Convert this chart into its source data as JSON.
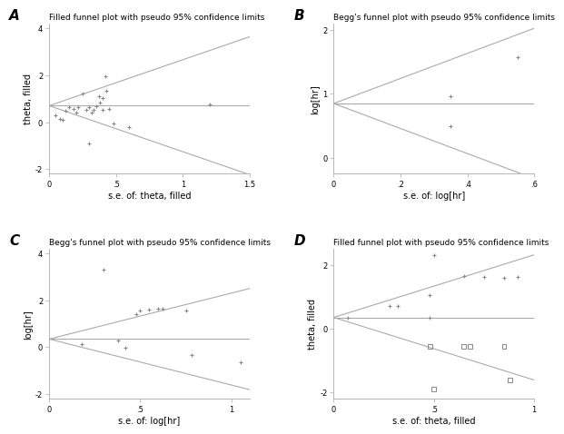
{
  "panel_A": {
    "title": "Filled funnel plot with pseudo 95% confidence limits",
    "xlabel": "s.e. of: theta, filled",
    "ylabel": "theta, filled",
    "xlim": [
      0,
      1.5
    ],
    "ylim": [
      -2.2,
      4.2
    ],
    "xticks": [
      0,
      0.5,
      1.0,
      1.5
    ],
    "yticks": [
      -2,
      0,
      2,
      4
    ],
    "xticklabels": [
      "0",
      ".5",
      "1",
      "1.5"
    ],
    "yticklabels": [
      "-2",
      "0",
      "2",
      "4"
    ],
    "theta": 0.7,
    "funnel_slope": 1.96,
    "points": [
      [
        0.05,
        0.28
      ],
      [
        0.08,
        0.12
      ],
      [
        0.1,
        0.08
      ],
      [
        0.12,
        0.5
      ],
      [
        0.15,
        0.62
      ],
      [
        0.18,
        0.55
      ],
      [
        0.2,
        0.42
      ],
      [
        0.22,
        0.62
      ],
      [
        0.25,
        1.22
      ],
      [
        0.28,
        0.52
      ],
      [
        0.3,
        0.65
      ],
      [
        0.32,
        0.42
      ],
      [
        0.33,
        0.52
      ],
      [
        0.35,
        0.68
      ],
      [
        0.37,
        1.1
      ],
      [
        0.38,
        0.82
      ],
      [
        0.4,
        1.02
      ],
      [
        0.4,
        0.52
      ],
      [
        0.42,
        1.95
      ],
      [
        0.43,
        1.35
      ],
      [
        0.45,
        0.55
      ],
      [
        0.48,
        -0.05
      ],
      [
        0.3,
        -0.9
      ],
      [
        0.6,
        -0.22
      ],
      [
        1.2,
        0.75
      ]
    ]
  },
  "panel_B": {
    "title": "Begg's funnel plot with pseudo 95% confidence limits",
    "xlabel": "s.e. of: log[hr]",
    "ylabel": "log[hr]",
    "xlim": [
      0,
      0.6
    ],
    "ylim": [
      -0.25,
      2.1
    ],
    "xticks": [
      0,
      0.2,
      0.4,
      0.6
    ],
    "yticks": [
      0,
      1,
      2
    ],
    "xticklabels": [
      "0",
      ".2",
      ".4",
      ".6"
    ],
    "yticklabels": [
      "0",
      "1",
      "2"
    ],
    "theta": 0.85,
    "funnel_slope": 1.96,
    "points": [
      [
        0.35,
        0.97
      ],
      [
        0.35,
        0.5
      ],
      [
        0.55,
        1.57
      ]
    ]
  },
  "panel_C": {
    "title": "Begg's funnel plot with pseudo 95% confidence limits",
    "xlabel": "s.e. of: log[hr]",
    "ylabel": "log[hr]",
    "xlim": [
      0,
      1.1
    ],
    "ylim": [
      -2.2,
      4.2
    ],
    "xticks": [
      0,
      0.5,
      1.0
    ],
    "yticks": [
      -2,
      0,
      2,
      4
    ],
    "xticklabels": [
      "0",
      ".5",
      "1"
    ],
    "yticklabels": [
      "-2",
      "0",
      "2",
      "4"
    ],
    "theta": 0.35,
    "funnel_slope": 1.96,
    "points": [
      [
        0.18,
        0.12
      ],
      [
        0.3,
        3.3
      ],
      [
        0.38,
        0.28
      ],
      [
        0.42,
        -0.03
      ],
      [
        0.48,
        1.42
      ],
      [
        0.5,
        1.55
      ],
      [
        0.55,
        1.62
      ],
      [
        0.6,
        1.65
      ],
      [
        0.62,
        1.65
      ],
      [
        0.75,
        1.55
      ],
      [
        0.78,
        -0.35
      ],
      [
        1.05,
        -0.65
      ]
    ]
  },
  "panel_D": {
    "title": "Filled funnel plot with pseudo 95% confidence limits",
    "xlabel": "s.e. of: theta, filled",
    "ylabel": "theta, filled",
    "xlim": [
      0,
      1.0
    ],
    "ylim": [
      -2.2,
      2.5
    ],
    "xticks": [
      0,
      0.5,
      1.0
    ],
    "yticks": [
      -2,
      0,
      2
    ],
    "xticklabels": [
      "0",
      ".5",
      "1"
    ],
    "yticklabels": [
      "-2",
      "0",
      "2"
    ],
    "theta": 0.35,
    "funnel_slope": 1.96,
    "square_points": [
      [
        0.48,
        -0.55
      ],
      [
        0.65,
        -0.55
      ],
      [
        0.68,
        -0.55
      ],
      [
        0.85,
        -0.55
      ],
      [
        0.5,
        -1.9
      ],
      [
        0.88,
        -1.6
      ]
    ],
    "plus_points": [
      [
        0.07,
        0.35
      ],
      [
        0.28,
        0.7
      ],
      [
        0.32,
        0.72
      ],
      [
        0.48,
        1.05
      ],
      [
        0.48,
        0.35
      ],
      [
        0.5,
        2.3
      ],
      [
        0.65,
        1.65
      ],
      [
        0.75,
        1.62
      ],
      [
        0.85,
        1.6
      ],
      [
        0.92,
        1.62
      ]
    ]
  },
  "label_fontsize": 7,
  "title_fontsize": 6.5,
  "tick_fontsize": 6,
  "panel_label_fontsize": 11,
  "line_color": "#aaaaaa",
  "point_color": "#888888",
  "bg_color": "#ffffff"
}
